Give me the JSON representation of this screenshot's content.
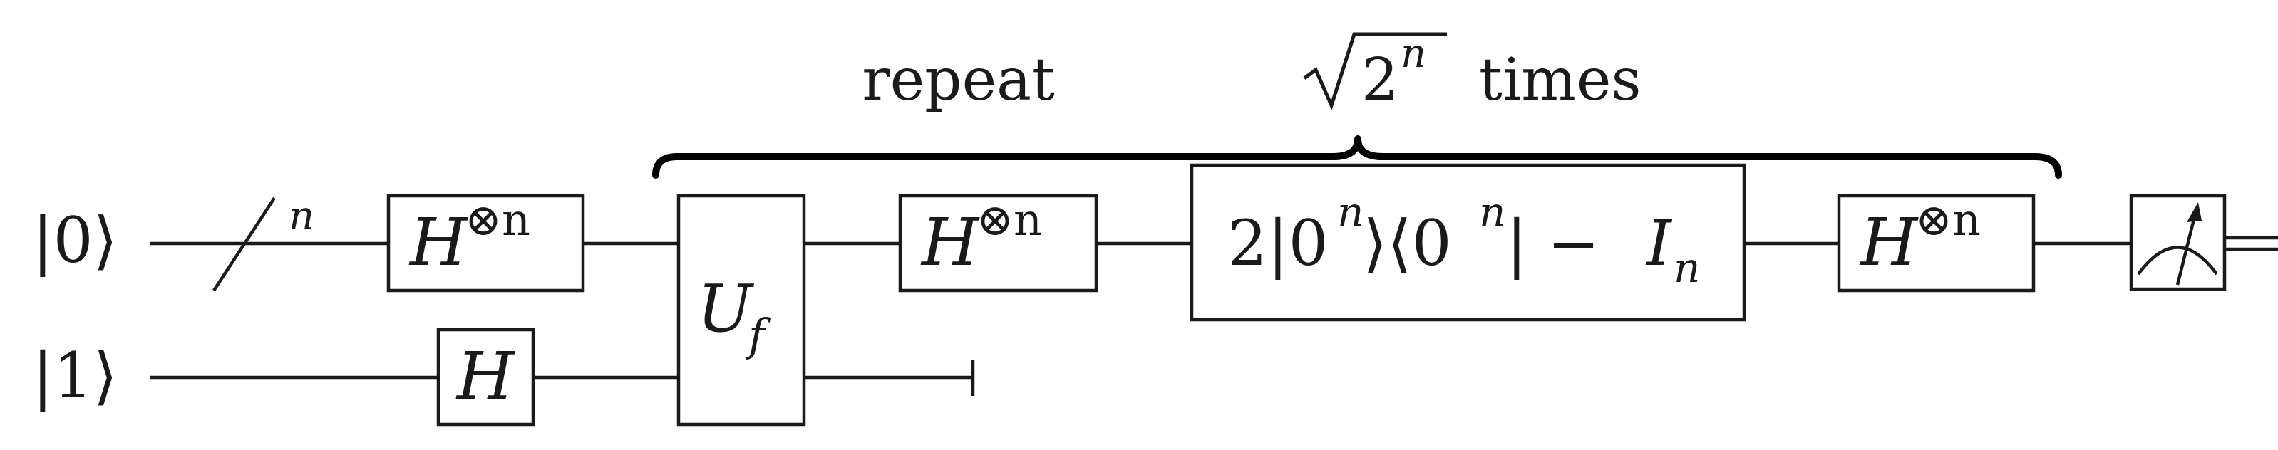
{
  "inputs": {
    "qubit0": "|0⟩",
    "qubit1": "|1⟩"
  },
  "register_size": "n",
  "gates": {
    "h_tensor": {
      "base": "H",
      "sup": "⊗n"
    },
    "h_single": "H",
    "oracle": {
      "base": "U",
      "sub": "f"
    },
    "diffusion": {
      "pre": "2|0",
      "sup1": "n",
      "mid": "⟩⟨0",
      "sup2": "n",
      "post": "| − ",
      "I": "I",
      "I_sub": "n"
    }
  },
  "repeat_label": {
    "pre": "repeat",
    "radicand_base": "2",
    "radicand_exp": "n",
    "post": "times"
  },
  "colors": {
    "ink": "#1a1a1a",
    "background": "#ffffff"
  },
  "icons": [
    "meter-icon",
    "register-slash-icon",
    "discard-icon",
    "brace-icon"
  ]
}
